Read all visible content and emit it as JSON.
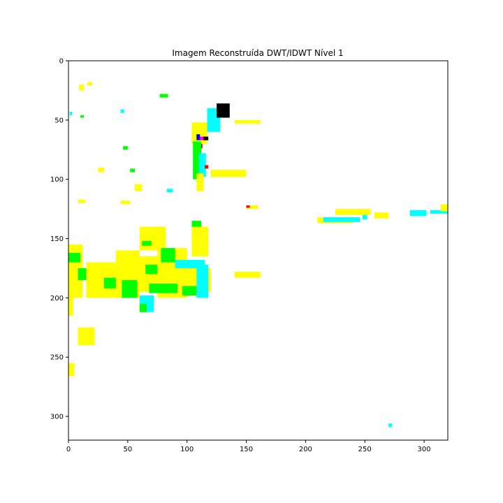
{
  "chart_data": {
    "type": "heatmap",
    "title": "Imagem Reconstruída DWT/IDWT Nível 1",
    "xlabel": "",
    "ylabel": "",
    "xlim": [
      0,
      320
    ],
    "ylim": [
      320,
      0
    ],
    "x_ticks": [
      "0",
      "50",
      "100",
      "150",
      "200",
      "250",
      "300"
    ],
    "y_ticks": [
      "0",
      "50",
      "100",
      "150",
      "200",
      "250",
      "300"
    ],
    "grid": false,
    "background_color": "#ffffff",
    "colors": {
      "yellow": "#ffff00",
      "cyan": "#00ffff",
      "green": "#00ff00",
      "blue": "#0000ff",
      "magenta": "#ff00ff",
      "red": "#ff0000",
      "black": "#000000",
      "gray": "#555555"
    },
    "regions": [
      {
        "color": "yellow",
        "x": [
          9,
          13
        ],
        "y": [
          20,
          25
        ]
      },
      {
        "color": "yellow",
        "x": [
          16,
          20
        ],
        "y": [
          18,
          21
        ]
      },
      {
        "color": "cyan",
        "x": [
          44,
          47
        ],
        "y": [
          41,
          44
        ]
      },
      {
        "color": "green",
        "x": [
          77,
          84
        ],
        "y": [
          28,
          31
        ]
      },
      {
        "color": "cyan",
        "x": [
          1,
          3
        ],
        "y": [
          43,
          46
        ]
      },
      {
        "color": "green",
        "x": [
          10,
          13
        ],
        "y": [
          46,
          48
        ]
      },
      {
        "color": "cyan",
        "x": [
          104,
          110
        ],
        "y": [
          58,
          70
        ]
      },
      {
        "color": "yellow",
        "x": [
          104,
          117
        ],
        "y": [
          52,
          70
        ]
      },
      {
        "color": "cyan",
        "x": [
          117,
          128
        ],
        "y": [
          40,
          60
        ]
      },
      {
        "color": "black",
        "x": [
          125,
          136
        ],
        "y": [
          36,
          48
        ]
      },
      {
        "color": "yellow",
        "x": [
          140,
          162
        ],
        "y": [
          50,
          53
        ]
      },
      {
        "color": "blue",
        "x": [
          108,
          111
        ],
        "y": [
          62,
          67
        ]
      },
      {
        "color": "magenta",
        "x": [
          111,
          115
        ],
        "y": [
          64,
          67
        ]
      },
      {
        "color": "black",
        "x": [
          114,
          118
        ],
        "y": [
          64,
          67
        ]
      },
      {
        "color": "red",
        "x": [
          110,
          113
        ],
        "y": [
          70,
          74
        ]
      },
      {
        "color": "green",
        "x": [
          105,
          112
        ],
        "y": [
          68,
          100
        ]
      },
      {
        "color": "cyan",
        "x": [
          110,
          116
        ],
        "y": [
          78,
          98
        ]
      },
      {
        "color": "red",
        "x": [
          115,
          118
        ],
        "y": [
          88,
          91
        ]
      },
      {
        "color": "yellow",
        "x": [
          108,
          114
        ],
        "y": [
          95,
          110
        ]
      },
      {
        "color": "yellow",
        "x": [
          120,
          150
        ],
        "y": [
          92,
          98
        ]
      },
      {
        "color": "yellow",
        "x": [
          150,
          160
        ],
        "y": [
          122,
          125
        ]
      },
      {
        "color": "red",
        "x": [
          150,
          153
        ],
        "y": [
          122,
          124
        ]
      },
      {
        "color": "yellow",
        "x": [
          56,
          62
        ],
        "y": [
          104,
          110
        ]
      },
      {
        "color": "yellow",
        "x": [
          44,
          52
        ],
        "y": [
          118,
          121
        ]
      },
      {
        "color": "cyan",
        "x": [
          83,
          88
        ],
        "y": [
          108,
          111
        ]
      },
      {
        "color": "yellow",
        "x": [
          8,
          14
        ],
        "y": [
          117,
          120
        ]
      },
      {
        "color": "green",
        "x": [
          52,
          56
        ],
        "y": [
          91,
          94
        ]
      },
      {
        "color": "yellow",
        "x": [
          25,
          30
        ],
        "y": [
          90,
          94
        ]
      },
      {
        "color": "green",
        "x": [
          46,
          50
        ],
        "y": [
          72,
          75
        ]
      },
      {
        "color": "yellow",
        "x": [
          210,
          240
        ],
        "y": [
          132,
          137
        ]
      },
      {
        "color": "cyan",
        "x": [
          215,
          246
        ],
        "y": [
          132,
          136
        ]
      },
      {
        "color": "cyan",
        "x": [
          248,
          252
        ],
        "y": [
          130,
          134
        ]
      },
      {
        "color": "yellow",
        "x": [
          225,
          255
        ],
        "y": [
          125,
          130
        ]
      },
      {
        "color": "yellow",
        "x": [
          258,
          270
        ],
        "y": [
          128,
          133
        ]
      },
      {
        "color": "cyan",
        "x": [
          288,
          302
        ],
        "y": [
          126,
          131
        ]
      },
      {
        "color": "cyan",
        "x": [
          305,
          320
        ],
        "y": [
          126,
          129
        ]
      },
      {
        "color": "yellow",
        "x": [
          314,
          320
        ],
        "y": [
          121,
          127
        ]
      },
      {
        "color": "green",
        "x": [
          104,
          112
        ],
        "y": [
          135,
          150
        ]
      },
      {
        "color": "yellow",
        "x": [
          104,
          118
        ],
        "y": [
          140,
          165
        ]
      },
      {
        "color": "yellow",
        "x": [
          60,
          82
        ],
        "y": [
          140,
          160
        ]
      },
      {
        "color": "green",
        "x": [
          62,
          70
        ],
        "y": [
          152,
          156
        ]
      },
      {
        "color": "yellow",
        "x": [
          0,
          12
        ],
        "y": [
          155,
          200
        ]
      },
      {
        "color": "green",
        "x": [
          0,
          10
        ],
        "y": [
          162,
          170
        ]
      },
      {
        "color": "green",
        "x": [
          8,
          20
        ],
        "y": [
          175,
          185
        ]
      },
      {
        "color": "yellow",
        "x": [
          15,
          40
        ],
        "y": [
          170,
          200
        ]
      },
      {
        "color": "green",
        "x": [
          30,
          42
        ],
        "y": [
          183,
          192
        ]
      },
      {
        "color": "yellow",
        "x": [
          40,
          60
        ],
        "y": [
          160,
          200
        ]
      },
      {
        "color": "green",
        "x": [
          45,
          58
        ],
        "y": [
          185,
          200
        ]
      },
      {
        "color": "yellow",
        "x": [
          60,
          80
        ],
        "y": [
          165,
          195
        ]
      },
      {
        "color": "green",
        "x": [
          65,
          78
        ],
        "y": [
          172,
          180
        ]
      },
      {
        "color": "cyan",
        "x": [
          60,
          72
        ],
        "y": [
          198,
          212
        ]
      },
      {
        "color": "green",
        "x": [
          60,
          66
        ],
        "y": [
          205,
          212
        ]
      },
      {
        "color": "yellow",
        "x": [
          75,
          100
        ],
        "y": [
          158,
          200
        ]
      },
      {
        "color": "green",
        "x": [
          78,
          90
        ],
        "y": [
          158,
          170
        ]
      },
      {
        "color": "cyan",
        "x": [
          90,
          115
        ],
        "y": [
          168,
          182
        ]
      },
      {
        "color": "yellow",
        "x": [
          80,
          100
        ],
        "y": [
          175,
          195
        ]
      },
      {
        "color": "green",
        "x": [
          68,
          92
        ],
        "y": [
          188,
          196
        ]
      },
      {
        "color": "yellow",
        "x": [
          100,
          120
        ],
        "y": [
          175,
          195
        ]
      },
      {
        "color": "cyan",
        "x": [
          108,
          118
        ],
        "y": [
          172,
          200
        ]
      },
      {
        "color": "green",
        "x": [
          96,
          108
        ],
        "y": [
          190,
          198
        ]
      },
      {
        "color": "yellow",
        "x": [
          140,
          162
        ],
        "y": [
          178,
          183
        ]
      },
      {
        "color": "yellow",
        "x": [
          0,
          4
        ],
        "y": [
          200,
          215
        ]
      },
      {
        "color": "yellow",
        "x": [
          8,
          22
        ],
        "y": [
          225,
          240
        ]
      },
      {
        "color": "yellow",
        "x": [
          0,
          5
        ],
        "y": [
          255,
          266
        ]
      },
      {
        "color": "cyan",
        "x": [
          270,
          273
        ],
        "y": [
          306,
          309
        ]
      }
    ]
  }
}
